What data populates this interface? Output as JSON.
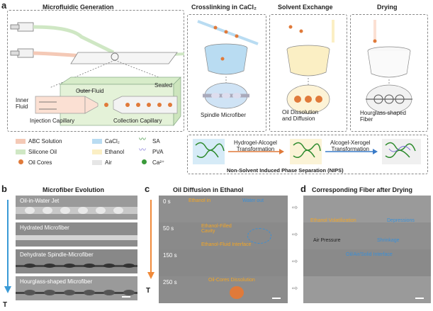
{
  "panel_a": {
    "letter": "a",
    "titles": {
      "microfluidic": "Microfluidic Generation",
      "crosslinking": "Crosslinking in CaCl₂",
      "solvent": "Solvent Exchange",
      "drying": "Drying"
    },
    "chip_labels": {
      "outer_fluid": "Outer Fluid",
      "sealed": "Sealed",
      "inner_fluid": "Inner\nFluid",
      "injection": "Injection Capillary",
      "collection": "Collection Capillary"
    },
    "stage_captions": {
      "spindle": "Spindle Microfiber",
      "oil": "Oil Dissolution\nand Diffusion",
      "hourglass": "Hourglass-shaped\nFiber"
    },
    "legend": [
      {
        "label": "ABC Solution",
        "color": "#f4c9b6"
      },
      {
        "label": "CaCl₂",
        "color": "#b9dcf2"
      },
      {
        "label": "SA",
        "color": "#2e8b2e"
      },
      {
        "label": "Silicone Oil",
        "color": "#cfe7c4"
      },
      {
        "label": "Ethanol",
        "color": "#fbefc4"
      },
      {
        "label": "PVA",
        "color": "#7b6fd6"
      },
      {
        "label": "Oil Cores",
        "color": "#e07a3a"
      },
      {
        "label": "Air",
        "color": "#e6e6e6"
      },
      {
        "label": "Ca²⁺",
        "color": "#3a9a3a"
      }
    ],
    "nips": {
      "hydrogel_alcogel": "Hydrogel-Alcogel\nTransformation",
      "alcogel_xerogel": "Alcogel-Xerogel\nTransformation",
      "title": "Non-Solvent Induced Phase Separation (NIPS)"
    }
  },
  "panel_b": {
    "letter": "b",
    "title": "Microfiber Evolution",
    "rows": [
      "Oil-in-Water Jet",
      "Hydrated Microfiber",
      "Dehydrate Spindle-Microfiber",
      "Hourglass-shaped Microfiber"
    ],
    "axis": "T"
  },
  "panel_c": {
    "letter": "c",
    "title": "Oil Diffusion in Ethanol",
    "times": [
      "0 s",
      "50 s",
      "150 s",
      "250 s"
    ],
    "annotations": {
      "ethanol_in": "Ethanol in",
      "water_out": "Water out",
      "ethanol_filled": "Ethanol-Filled\nCavity",
      "ethanol_fluid": "Ethanol-Fluid Interface",
      "oil_dissolution": "Oil-Cores Dissolution"
    },
    "axis": "T"
  },
  "panel_d": {
    "letter": "d",
    "title": "Corresponding Fiber after Drying",
    "annotations": {
      "ethanol_vol": "Ethanol Volatilization",
      "depressions": "Depressions",
      "air_pressure": "Air Pressure",
      "shrinkage": "Shrinkage",
      "interface": "Oil/Air/Solid Interface"
    }
  }
}
